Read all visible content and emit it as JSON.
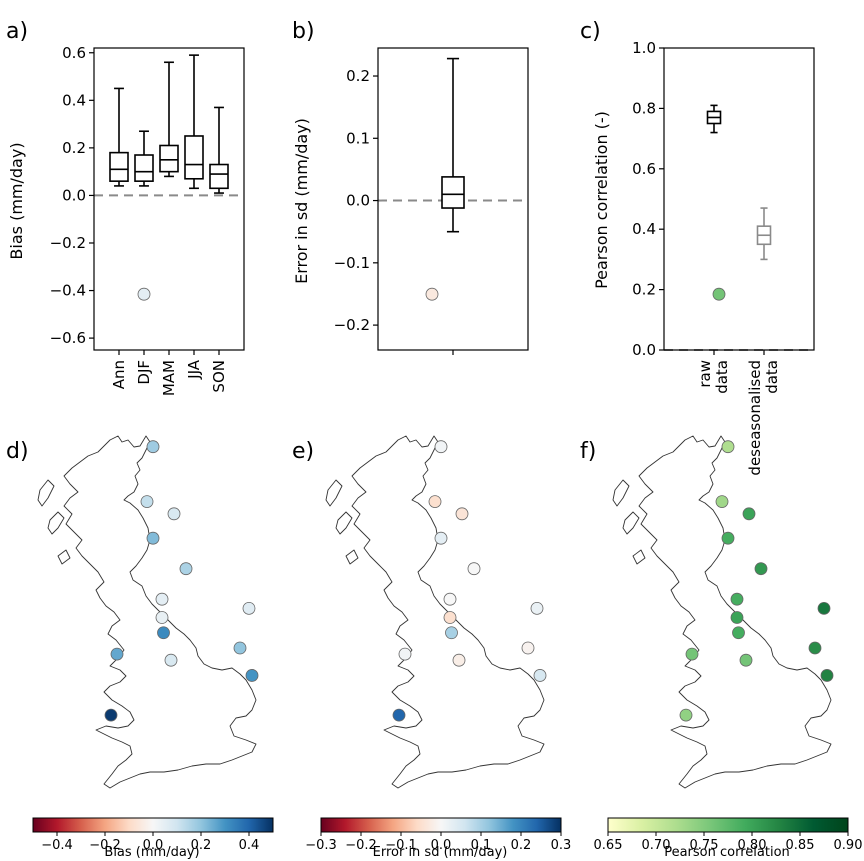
{
  "panel_labels": [
    "a)",
    "b)",
    "c)",
    "d)",
    "e)",
    "f)"
  ],
  "colorbar_ticks": {
    "d": [
      "−0.4",
      "−0.2",
      "0.0",
      "0.2",
      "0.4"
    ],
    "e": [
      "−0.3",
      "−0.2",
      "−0.1",
      "0.0",
      "0.1",
      "0.2",
      "0.3"
    ],
    "f": [
      "0.65",
      "0.70",
      "0.75",
      "0.80",
      "0.85",
      "0.90"
    ]
  },
  "colors": {
    "box_raw": "#000000",
    "box_deseasonalised": "#8a8a8a",
    "zero_line": "#8a8a8a",
    "bias_neg": "#67001f",
    "bias_mid": "#f7f7f7",
    "bias_pos": "#053061",
    "green_low": "#ffffcc",
    "green_high": "#00441b"
  },
  "chart_data": [
    {
      "panel": "a)",
      "type": "box",
      "ylabel": "Bias (mm/day)",
      "ylim": [
        -0.65,
        0.62
      ],
      "yticks": [
        -0.6,
        -0.4,
        -0.2,
        0.0,
        0.2,
        0.4,
        0.6
      ],
      "ytick_labels": [
        "−0.6",
        "−0.4",
        "−0.2",
        "0.0",
        "0.2",
        "0.4",
        "0.6"
      ],
      "categories": [
        "Ann",
        "DJF",
        "MAM",
        "JJA",
        "SON"
      ],
      "boxes": [
        {
          "min": 0.04,
          "q1": 0.06,
          "median": 0.11,
          "q3": 0.18,
          "max": 0.45
        },
        {
          "min": 0.04,
          "q1": 0.06,
          "median": 0.1,
          "q3": 0.17,
          "max": 0.27
        },
        {
          "min": 0.08,
          "q1": 0.1,
          "median": 0.15,
          "q3": 0.21,
          "max": 0.56
        },
        {
          "min": 0.03,
          "q1": 0.07,
          "median": 0.13,
          "q3": 0.25,
          "max": 0.59
        },
        {
          "min": 0.01,
          "q1": 0.03,
          "median": 0.09,
          "q3": 0.13,
          "max": 0.37
        }
      ],
      "zero_line": true
    },
    {
      "panel": "b)",
      "type": "box",
      "ylabel": "Error in sd (mm/day)",
      "ylim": [
        -0.24,
        0.245
      ],
      "yticks": [
        -0.2,
        -0.1,
        0.0,
        0.1,
        0.2
      ],
      "ytick_labels": [
        "−0.2",
        "−0.1",
        "0.0",
        "0.1",
        "0.2"
      ],
      "categories": [
        ""
      ],
      "boxes": [
        {
          "min": -0.05,
          "q1": -0.012,
          "median": 0.01,
          "q3": 0.038,
          "max": 0.228
        }
      ],
      "zero_line": true
    },
    {
      "panel": "c)",
      "type": "box",
      "ylabel": "Pearson correlation (-)",
      "ylim": [
        0.0,
        1.0
      ],
      "yticks": [
        0.0,
        0.2,
        0.4,
        0.6,
        0.8,
        1.0
      ],
      "ytick_labels": [
        "0.0",
        "0.2",
        "0.4",
        "0.6",
        "0.8",
        "1.0"
      ],
      "categories": [
        "raw\ndata",
        "deseasonalised\ndata"
      ],
      "category_lines": [
        [
          "raw",
          "data"
        ],
        [
          "deseasonalised",
          "data"
        ]
      ],
      "boxes": [
        {
          "min": 0.72,
          "q1": 0.75,
          "median": 0.77,
          "q3": 0.79,
          "max": 0.81
        },
        {
          "min": 0.3,
          "q1": 0.35,
          "median": 0.38,
          "q3": 0.41,
          "max": 0.47
        }
      ],
      "zero_line": true
    },
    {
      "panel": "d)",
      "type": "map",
      "colorbar_label": "Bias (mm/day)",
      "colorbar_range": [
        -0.5,
        0.5
      ],
      "colormap": "RdBu",
      "stations": [
        {
          "lon": -3.2,
          "lat": 58.4,
          "value": 0.05
        },
        {
          "lon": -2.9,
          "lat": 55.9,
          "value": 0.18
        },
        {
          "lon": -3.1,
          "lat": 55.0,
          "value": 0.12
        },
        {
          "lon": -2.2,
          "lat": 54.8,
          "value": 0.08
        },
        {
          "lon": -2.9,
          "lat": 54.4,
          "value": 0.22
        },
        {
          "lon": -1.8,
          "lat": 53.9,
          "value": 0.16
        },
        {
          "lon": -2.6,
          "lat": 53.4,
          "value": 0.05
        },
        {
          "lon": -2.6,
          "lat": 53.1,
          "value": 0.04
        },
        {
          "lon": -2.55,
          "lat": 52.85,
          "value": 0.32
        },
        {
          "lon": 0.3,
          "lat": 53.25,
          "value": 0.06
        },
        {
          "lon": 0.0,
          "lat": 52.6,
          "value": 0.2
        },
        {
          "lon": -4.1,
          "lat": 52.5,
          "value": 0.26
        },
        {
          "lon": -2.3,
          "lat": 52.4,
          "value": 0.08
        },
        {
          "lon": 0.4,
          "lat": 52.15,
          "value": 0.3
        },
        {
          "lon": -4.3,
          "lat": 51.5,
          "value": 0.48
        }
      ]
    },
    {
      "panel": "e)",
      "type": "map",
      "colorbar_label": "Error in sd (mm/day)",
      "colorbar_range": [
        -0.3,
        0.3
      ],
      "colormap": "RdBu",
      "stations": [
        {
          "lon": -3.2,
          "lat": 58.4,
          "value": -0.03
        },
        {
          "lon": -2.9,
          "lat": 55.9,
          "value": 0.01
        },
        {
          "lon": -3.1,
          "lat": 55.0,
          "value": -0.05
        },
        {
          "lon": -2.2,
          "lat": 54.8,
          "value": -0.04
        },
        {
          "lon": -2.9,
          "lat": 54.4,
          "value": 0.03
        },
        {
          "lon": -1.8,
          "lat": 53.9,
          "value": 0.0
        },
        {
          "lon": -2.6,
          "lat": 53.4,
          "value": 0.0
        },
        {
          "lon": -2.6,
          "lat": 53.1,
          "value": -0.05
        },
        {
          "lon": -2.55,
          "lat": 52.85,
          "value": 0.1
        },
        {
          "lon": 0.3,
          "lat": 53.25,
          "value": 0.02
        },
        {
          "lon": 0.0,
          "lat": 52.6,
          "value": -0.01
        },
        {
          "lon": -4.1,
          "lat": 52.5,
          "value": 0.01
        },
        {
          "lon": -2.3,
          "lat": 52.4,
          "value": -0.02
        },
        {
          "lon": 0.4,
          "lat": 52.15,
          "value": 0.05
        },
        {
          "lon": -4.3,
          "lat": 51.5,
          "value": 0.24
        }
      ]
    },
    {
      "panel": "f)",
      "type": "map",
      "colorbar_label": "Pearson correlation",
      "colorbar_range": [
        0.65,
        0.9
      ],
      "colormap": "YlGn",
      "stations": [
        {
          "lon": -3.2,
          "lat": 58.4,
          "value": 0.76
        },
        {
          "lon": -2.9,
          "lat": 55.9,
          "value": 0.72
        },
        {
          "lon": -3.1,
          "lat": 55.0,
          "value": 0.73
        },
        {
          "lon": -2.2,
          "lat": 54.8,
          "value": 0.8
        },
        {
          "lon": -2.9,
          "lat": 54.4,
          "value": 0.79
        },
        {
          "lon": -1.8,
          "lat": 53.9,
          "value": 0.81
        },
        {
          "lon": -2.6,
          "lat": 53.4,
          "value": 0.79
        },
        {
          "lon": -2.6,
          "lat": 53.1,
          "value": 0.8
        },
        {
          "lon": -2.55,
          "lat": 52.85,
          "value": 0.79
        },
        {
          "lon": 0.3,
          "lat": 53.25,
          "value": 0.84
        },
        {
          "lon": 0.0,
          "lat": 52.6,
          "value": 0.82
        },
        {
          "lon": -4.1,
          "lat": 52.5,
          "value": 0.76
        },
        {
          "lon": -2.3,
          "lat": 52.4,
          "value": 0.76
        },
        {
          "lon": 0.4,
          "lat": 52.15,
          "value": 0.83
        },
        {
          "lon": -4.3,
          "lat": 51.5,
          "value": 0.74
        }
      ]
    }
  ]
}
